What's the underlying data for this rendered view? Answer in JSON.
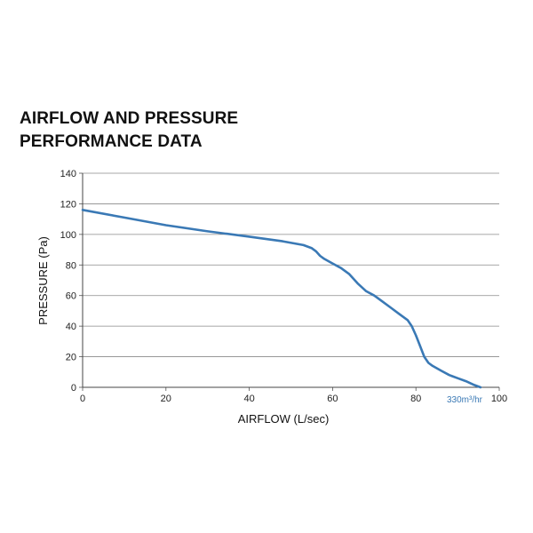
{
  "title_lines": [
    "AIRFLOW AND PRESSURE",
    "PERFORMANCE DATA"
  ],
  "chart_data": {
    "type": "line",
    "title": "AIRFLOW AND PRESSURE PERFORMANCE DATA",
    "xlabel": "AIRFLOW (L/sec)",
    "ylabel": "PRESSURE (Pa)",
    "xlim": [
      0,
      100
    ],
    "ylim": [
      0,
      140
    ],
    "xticks": [
      0,
      20,
      40,
      60,
      80,
      100
    ],
    "yticks": [
      0,
      20,
      40,
      60,
      80,
      100,
      120,
      140
    ],
    "grid": "horizontal",
    "annotation": "330m³/hr",
    "series": [
      {
        "color": "#3a79b5",
        "x": [
          0,
          10,
          20,
          30,
          40,
          48,
          53,
          55,
          56,
          57,
          58,
          60,
          62,
          64,
          66,
          68,
          70,
          72,
          74,
          76,
          78,
          79,
          80,
          81,
          82,
          83,
          84,
          86,
          88,
          90,
          92,
          94,
          95.5
        ],
        "y": [
          116,
          111,
          106,
          102,
          98.5,
          95.5,
          93,
          91,
          89,
          86,
          84,
          81,
          78,
          74,
          68,
          63,
          60,
          56,
          52,
          48,
          44,
          40,
          34,
          27,
          20,
          16,
          14,
          11,
          8,
          6,
          4,
          1.5,
          0
        ]
      }
    ]
  }
}
